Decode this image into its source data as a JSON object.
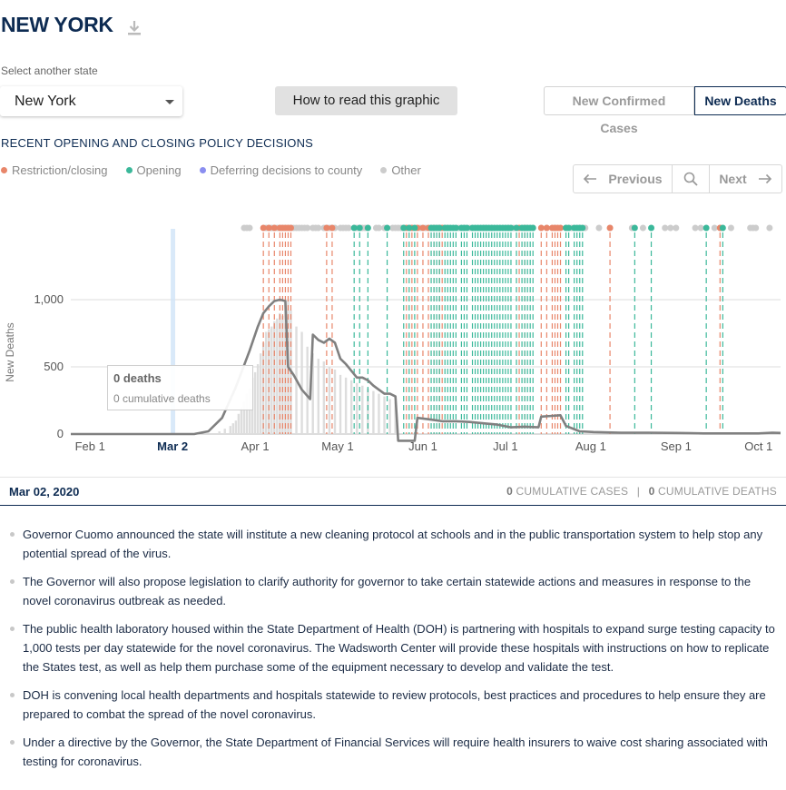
{
  "header": {
    "title": "NEW YORK",
    "download_icon": "download-icon"
  },
  "state_select": {
    "label": "Select another state",
    "value": "New York"
  },
  "how_to_read_label": "How to read this graphic",
  "metric_toggle": {
    "cases_label": "New Confirmed Cases",
    "deaths_label": "New Deaths",
    "selected": "New Deaths"
  },
  "policy": {
    "heading": "RECENT OPENING AND CLOSING POLICY DECISIONS",
    "legend": [
      {
        "label": "Restriction/closing",
        "color": "#e8866a"
      },
      {
        "label": "Opening",
        "color": "#3bb89a"
      },
      {
        "label": "Deferring decisions to county",
        "color": "#8a8ef0"
      },
      {
        "label": "Other",
        "color": "#cccccc"
      }
    ]
  },
  "navigation": {
    "previous_label": "Previous",
    "next_label": "Next",
    "search_icon": "search-icon"
  },
  "chart_data": {
    "type": "line",
    "ylabel": "New Deaths",
    "ylim": [
      0,
      1000
    ],
    "yticks": [
      "1,000",
      "500",
      "0"
    ],
    "xticks": [
      "Feb 1",
      "Mar 2",
      "Apr 1",
      "May 1",
      "Jun 1",
      "Jul 1",
      "Aug 1",
      "Sep 1",
      "Oct 1"
    ],
    "selected_date": "Mar 2",
    "series": [
      {
        "values_by_day_from_jan25": [
          [
            0,
            0
          ],
          [
            30,
            0
          ],
          [
            45,
            1
          ],
          [
            50,
            20
          ],
          [
            55,
            120
          ],
          [
            60,
            350
          ],
          [
            65,
            620
          ],
          [
            68,
            800
          ],
          [
            70,
            900
          ],
          [
            72,
            950
          ],
          [
            74,
            990
          ],
          [
            76,
            1000
          ],
          [
            78,
            990
          ],
          [
            79,
            500
          ],
          [
            81,
            440
          ],
          [
            84,
            330
          ],
          [
            87,
            260
          ],
          [
            88,
            740
          ],
          [
            90,
            700
          ],
          [
            92,
            680
          ],
          [
            94,
            710
          ],
          [
            96,
            680
          ],
          [
            98,
            560
          ],
          [
            100,
            520
          ],
          [
            102,
            470
          ],
          [
            104,
            420
          ],
          [
            106,
            420
          ],
          [
            108,
            400
          ],
          [
            110,
            360
          ],
          [
            112,
            330
          ],
          [
            114,
            300
          ],
          [
            116,
            300
          ],
          [
            118,
            280
          ],
          [
            119,
            -50
          ],
          [
            125,
            -50
          ],
          [
            126,
            120
          ],
          [
            130,
            110
          ],
          [
            135,
            95
          ],
          [
            140,
            95
          ],
          [
            145,
            90
          ],
          [
            150,
            80
          ],
          [
            155,
            70
          ],
          [
            160,
            50
          ],
          [
            165,
            55
          ],
          [
            170,
            50
          ],
          [
            171,
            130
          ],
          [
            175,
            135
          ],
          [
            178,
            140
          ],
          [
            180,
            60
          ],
          [
            185,
            20
          ],
          [
            190,
            15
          ],
          [
            200,
            10
          ],
          [
            210,
            10
          ],
          [
            220,
            8
          ],
          [
            230,
            5
          ],
          [
            240,
            5
          ],
          [
            250,
            5
          ],
          [
            255,
            10
          ],
          [
            258,
            8
          ]
        ]
      }
    ],
    "policy_dots": {
      "other": [
        63,
        64,
        65,
        71,
        72,
        73,
        74,
        75,
        76,
        77,
        78,
        79,
        80,
        81,
        82,
        83,
        84,
        85,
        86,
        88,
        89,
        90,
        92,
        93,
        94,
        95,
        96,
        98,
        99,
        100,
        101,
        103,
        104,
        105,
        106,
        107,
        108,
        111,
        112,
        114,
        117,
        118,
        119,
        120,
        121,
        123,
        124,
        126,
        127,
        129,
        131,
        133,
        134,
        136,
        137,
        141,
        143,
        145,
        150,
        151,
        153,
        159,
        161,
        166,
        168,
        173,
        176,
        180,
        182,
        185,
        187,
        192,
        196,
        204,
        208,
        216,
        218,
        220,
        227,
        229,
        234,
        236,
        240,
        247,
        248,
        249,
        254
      ],
      "restriction": [
        70,
        72,
        74,
        76,
        77,
        78,
        79,
        80,
        93,
        95,
        122,
        124,
        126,
        128,
        130,
        132,
        134,
        135,
        163,
        165,
        171,
        173,
        175,
        176,
        177,
        178,
        196,
        236
      ],
      "opening": [
        103,
        105,
        108,
        115,
        121,
        123,
        125,
        131,
        132,
        133,
        134,
        136,
        137,
        138,
        139,
        140,
        142,
        143,
        144,
        146,
        147,
        148,
        149,
        150,
        151,
        152,
        153,
        154,
        155,
        156,
        157,
        158,
        159,
        160,
        162,
        164,
        165,
        166,
        167,
        168,
        180,
        181,
        183,
        184,
        185,
        186,
        205,
        211,
        231,
        237
      ],
      "county": []
    },
    "bars_by_day_from_jan25": [
      [
        54,
        20
      ],
      [
        56,
        40
      ],
      [
        58,
        60
      ],
      [
        59,
        80
      ],
      [
        60,
        100
      ],
      [
        61,
        150
      ],
      [
        62,
        200
      ],
      [
        63,
        240
      ],
      [
        64,
        300
      ],
      [
        65,
        340
      ],
      [
        66,
        420
      ],
      [
        67,
        460
      ],
      [
        68,
        520
      ],
      [
        69,
        600
      ],
      [
        70,
        680
      ],
      [
        71,
        760
      ],
      [
        72,
        780
      ],
      [
        73,
        800
      ],
      [
        74,
        840
      ],
      [
        75,
        860
      ],
      [
        76,
        900
      ],
      [
        77,
        880
      ],
      [
        78,
        960
      ],
      [
        79,
        1000
      ],
      [
        80,
        920
      ],
      [
        82,
        800
      ],
      [
        84,
        760
      ],
      [
        86,
        650
      ],
      [
        88,
        600
      ],
      [
        90,
        560
      ],
      [
        92,
        540
      ],
      [
        94,
        500
      ],
      [
        96,
        480
      ],
      [
        98,
        440
      ],
      [
        100,
        420
      ],
      [
        102,
        400
      ],
      [
        104,
        380
      ],
      [
        106,
        360
      ],
      [
        108,
        340
      ],
      [
        110,
        320
      ],
      [
        112,
        300
      ],
      [
        114,
        280
      ],
      [
        116,
        260
      ],
      [
        118,
        240
      ]
    ]
  },
  "tooltip": {
    "title": "0 deaths",
    "subtitle": "0 cumulative deaths"
  },
  "date_bar": {
    "date": "Mar 02, 2020",
    "cum_cases_value": "0",
    "cum_cases_label": "CUMULATIVE CASES",
    "cum_deaths_value": "0",
    "cum_deaths_label": "CUMULATIVE DEATHS"
  },
  "notes": [
    "Governor Cuomo announced the state will institute a new cleaning protocol at schools and in the public transportation system to help stop any potential spread of the virus.",
    "The Governor will also propose legislation to clarify authority for governor to take certain statewide actions and measures in response to the novel coronavirus outbreak as needed.",
    "The public health laboratory housed within the State Department of Health (DOH) is partnering with hospitals to expand surge testing capacity to 1,000 tests per day statewide for the novel coronavirus. The Wadsworth Center will provide these hospitals with instructions on how to replicate the States test, as well as help them purchase some of the equipment necessary to develop and validate the test.",
    "DOH is convening local health departments and hospitals statewide to review protocols, best practices and procedures to help ensure they are prepared to combat the spread of the novel coronavirus.",
    "Under a directive by the Governor, the State Department of Financial Services will require health insurers to waive cost sharing associated with testing for coronavirus."
  ]
}
